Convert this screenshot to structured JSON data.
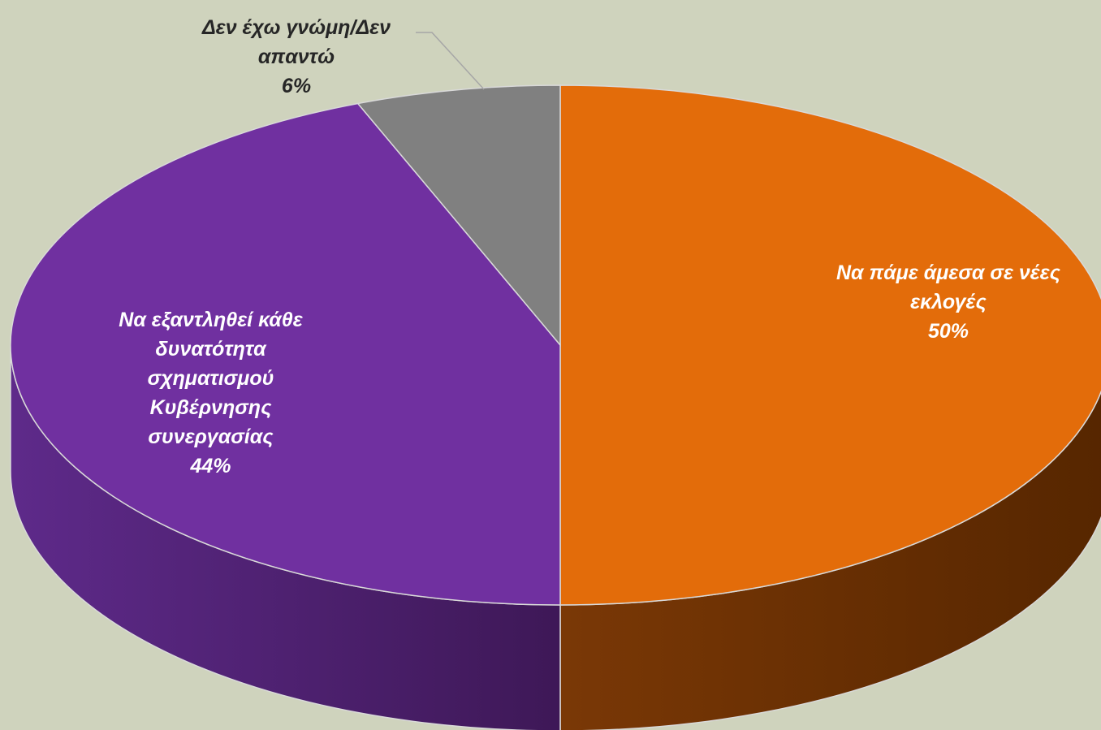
{
  "chart_data": {
    "type": "pie3d",
    "categories": [
      "Να πάμε άμεσα σε νέες εκλογές",
      "Να εξαντληθεί κάθε δυνατότητα σχηματισμού Κυβέρνησης συνεργασίας",
      "Δεν έχω γνώμη/Δεν απαντώ"
    ],
    "values": [
      50,
      44,
      6
    ],
    "value_labels": [
      "50%",
      "44%",
      "6%"
    ],
    "colors": [
      "#e36c0a",
      "#7030a0",
      "#808080"
    ]
  }
}
